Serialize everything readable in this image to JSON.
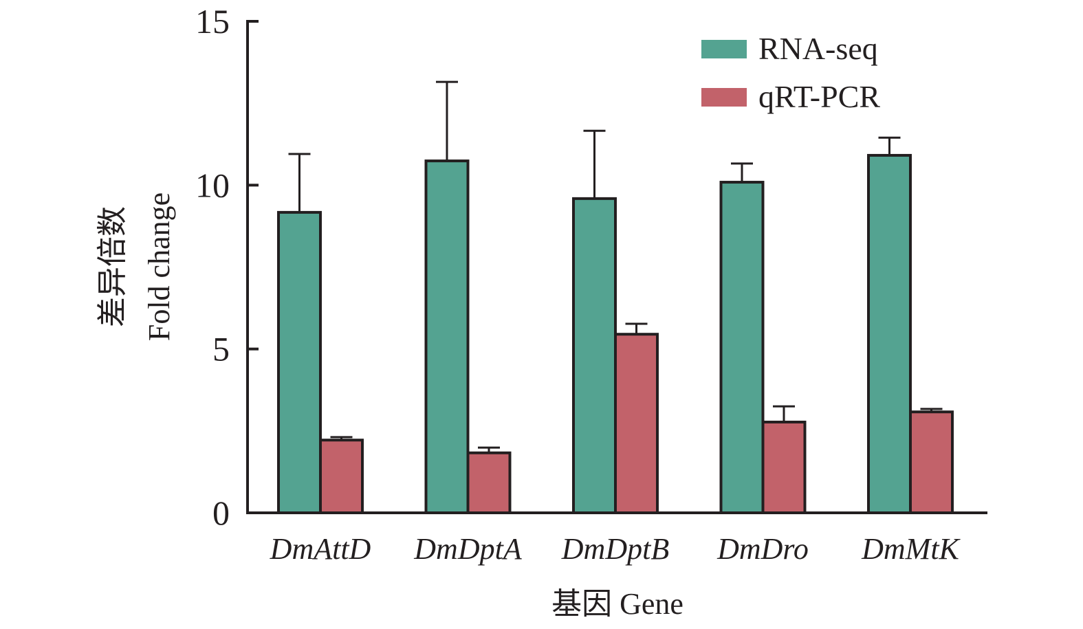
{
  "chart_data": {
    "type": "bar",
    "title": "",
    "xlabel": "基因 Gene",
    "ylabel_lines": [
      "差异倍数",
      "Fold change"
    ],
    "ylim": [
      0,
      15
    ],
    "yticks": [
      0,
      5,
      10,
      15
    ],
    "ytick_labels": [
      "0",
      "5",
      "10",
      "15"
    ],
    "categories": [
      "DmAttD",
      "DmDptA",
      "DmDptB",
      "DmDro",
      "DmMtK"
    ],
    "series": [
      {
        "name": "RNA-seq",
        "color": "#54a391",
        "values": [
          9.17,
          10.74,
          9.59,
          10.09,
          10.91
        ],
        "error": [
          1.78,
          2.41,
          2.07,
          0.57,
          0.54
        ]
      },
      {
        "name": "qRT-PCR",
        "color": "#c2626a",
        "values": [
          2.22,
          1.83,
          5.45,
          2.77,
          3.08
        ],
        "error": [
          0.09,
          0.16,
          0.32,
          0.48,
          0.09
        ]
      }
    ],
    "legend": {
      "position": "top-right",
      "entries": [
        "RNA-seq",
        "qRT-PCR"
      ]
    },
    "grid": false,
    "error_bars": "upper only"
  }
}
